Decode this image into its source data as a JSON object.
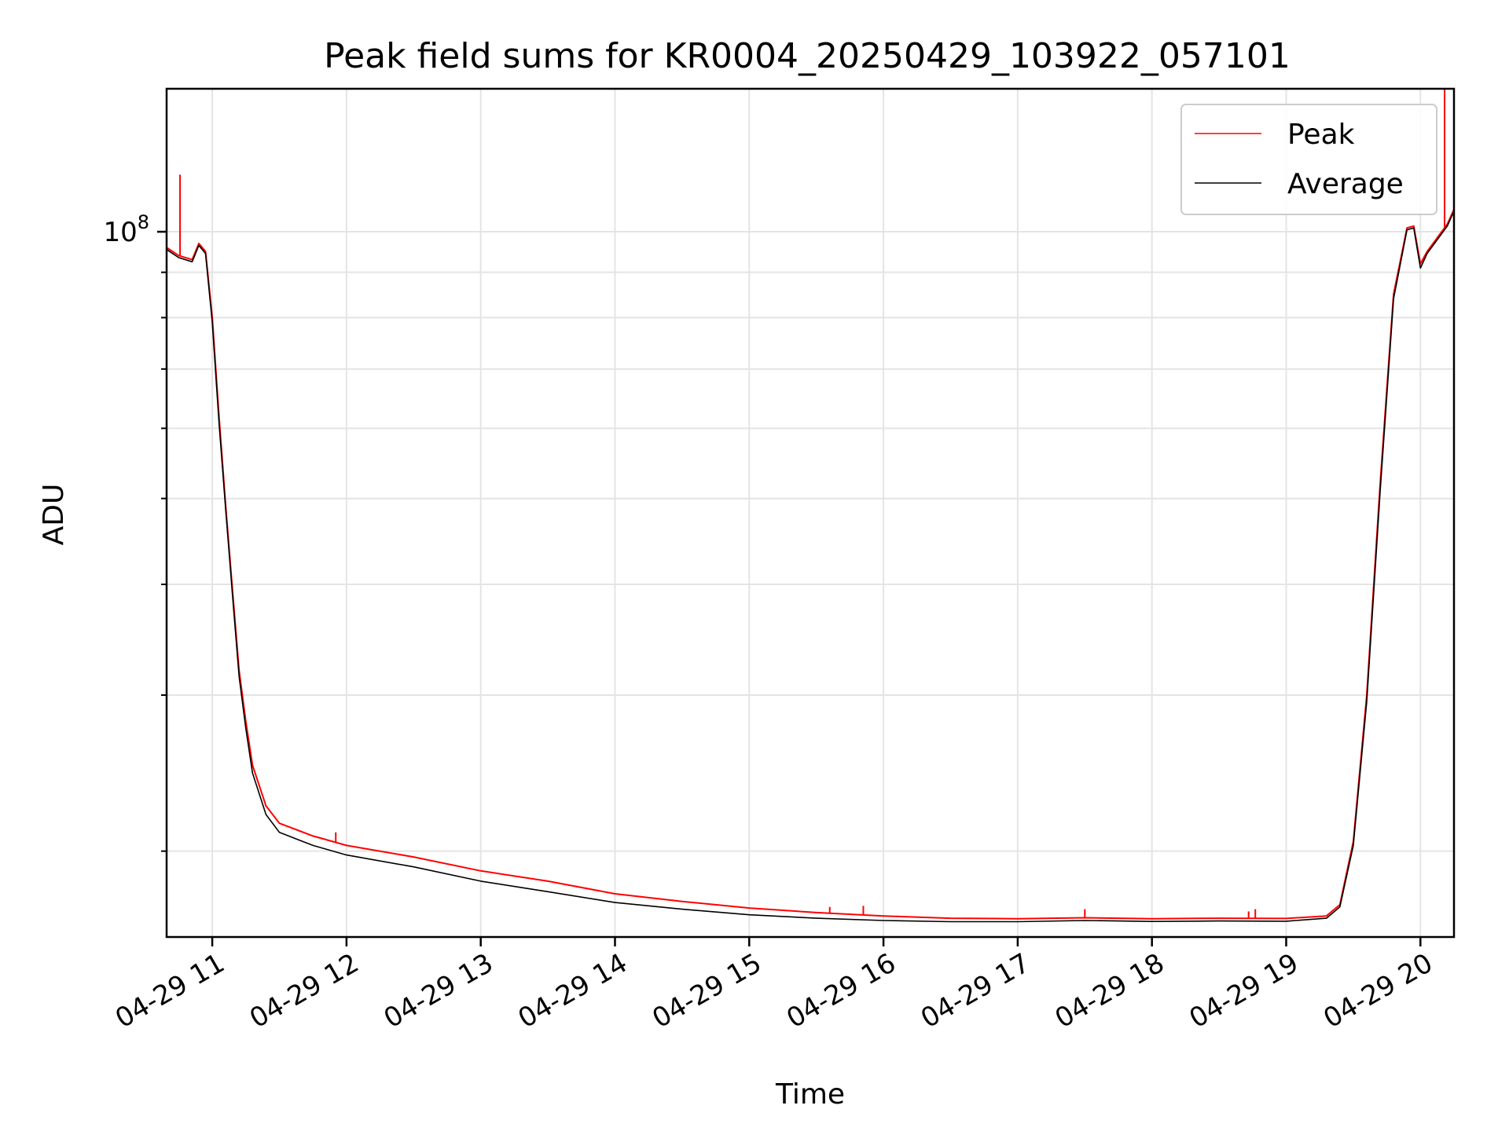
{
  "chart_data": {
    "type": "line",
    "title": "Peak field sums for KR0004_20250429_103922_057101",
    "xlabel": "Time",
    "ylabel": "ADU",
    "x_tick_labels": [
      "04-29 11",
      "04-29 12",
      "04-29 13",
      "04-29 14",
      "04-29 15",
      "04-29 16",
      "04-29 17",
      "04-29 18",
      "04-29 19",
      "04-29 20"
    ],
    "x_ticks_hours": [
      11,
      12,
      13,
      14,
      15,
      16,
      17,
      18,
      19,
      20
    ],
    "y_tick_label_base": "10",
    "y_tick_label_exp": "8",
    "y_tick_major": 100000000,
    "y_minor_ticks": [
      20000000,
      30000000,
      40000000,
      50000000,
      60000000,
      70000000,
      80000000,
      90000000
    ],
    "y_scale": "log",
    "xlim_hours": [
      10.66,
      20.25
    ],
    "ylim": [
      16000000,
      145000000
    ],
    "grid": true,
    "legend_position": "upper right",
    "series": [
      {
        "name": "Peak",
        "color": "#ff0000",
        "x_hours": [
          10.66,
          10.75,
          10.85,
          10.9,
          10.95,
          11.0,
          11.05,
          11.1,
          11.15,
          11.2,
          11.25,
          11.3,
          11.4,
          11.5,
          11.75,
          12.0,
          12.5,
          13.0,
          13.5,
          14.0,
          14.5,
          15.0,
          15.5,
          16.0,
          16.5,
          17.0,
          17.5,
          18.0,
          18.5,
          19.0,
          19.3,
          19.4,
          19.5,
          19.6,
          19.7,
          19.8,
          19.9,
          19.95,
          20.0,
          20.05,
          20.2,
          20.25
        ],
        "values": [
          96000000,
          94000000,
          93000000,
          97000000,
          95000000,
          80000000,
          62000000,
          49000000,
          39500000,
          32000000,
          28000000,
          25000000,
          22500000,
          21500000,
          20800000,
          20300000,
          19700000,
          19000000,
          18500000,
          17900000,
          17550000,
          17250000,
          17050000,
          16900000,
          16800000,
          16780000,
          16820000,
          16780000,
          16800000,
          16790000,
          16900000,
          17400000,
          20500000,
          30000000,
          52000000,
          85000000,
          101000000,
          101500000,
          92000000,
          95000000,
          102000000,
          106000000
        ]
      },
      {
        "name": "Average",
        "color": "#000000",
        "x_hours": [
          10.66,
          10.75,
          10.85,
          10.9,
          10.95,
          11.0,
          11.05,
          11.1,
          11.15,
          11.2,
          11.25,
          11.3,
          11.4,
          11.5,
          11.75,
          12.0,
          12.5,
          13.0,
          13.5,
          14.0,
          14.5,
          15.0,
          15.5,
          16.0,
          16.5,
          17.0,
          17.5,
          18.0,
          18.5,
          19.0,
          19.3,
          19.4,
          19.5,
          19.6,
          19.7,
          19.8,
          19.9,
          19.95,
          20.0,
          20.05,
          20.2,
          20.25
        ],
        "values": [
          95500000,
          93500000,
          92500000,
          96500000,
          94500000,
          79000000,
          61000000,
          48500000,
          39000000,
          31500000,
          27500000,
          24500000,
          22000000,
          21000000,
          20300000,
          19800000,
          19200000,
          18500000,
          18000000,
          17500000,
          17200000,
          16950000,
          16800000,
          16700000,
          16650000,
          16650000,
          16700000,
          16660000,
          16680000,
          16670000,
          16800000,
          17300000,
          20300000,
          29500000,
          51000000,
          84000000,
          100500000,
          101000000,
          91000000,
          94500000,
          101500000,
          105500000
        ]
      }
    ],
    "spikes": [
      {
        "series": "Peak",
        "x_hour": 10.76,
        "value": 116000000
      },
      {
        "series": "Peak",
        "x_hour": 11.92,
        "value": 21000000
      },
      {
        "series": "Peak",
        "x_hour": 15.6,
        "value": 17300000
      },
      {
        "series": "Peak",
        "x_hour": 15.85,
        "value": 17350000
      },
      {
        "series": "Peak",
        "x_hour": 17.5,
        "value": 17200000
      },
      {
        "series": "Peak",
        "x_hour": 18.72,
        "value": 17100000
      },
      {
        "series": "Peak",
        "x_hour": 18.77,
        "value": 17200000
      },
      {
        "series": "Peak",
        "x_hour": 20.18,
        "value": 145000000
      }
    ]
  }
}
